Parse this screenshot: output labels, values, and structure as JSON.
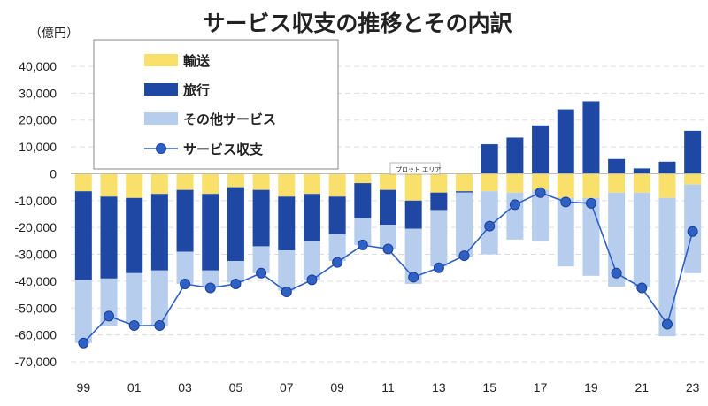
{
  "chart_data": {
    "type": "bar",
    "title": "サービス収支の推移とその内訳",
    "ylabel": "（億円）",
    "ylim": [
      -70000,
      40000
    ],
    "yticks": [
      "40,000",
      "30,000",
      "20,000",
      "10,000",
      "0",
      "-10,000",
      "-20,000",
      "-30,000",
      "-40,000",
      "-50,000",
      "-60,000",
      "-70,000"
    ],
    "ytick_values": [
      40000,
      30000,
      20000,
      10000,
      0,
      -10000,
      -20000,
      -30000,
      -40000,
      -50000,
      -60000,
      -70000
    ],
    "years": [
      "99",
      "00",
      "01",
      "02",
      "03",
      "04",
      "05",
      "06",
      "07",
      "08",
      "09",
      "10",
      "11",
      "12",
      "13",
      "14",
      "15",
      "16",
      "17",
      "18",
      "19",
      "20",
      "21",
      "22",
      "23"
    ],
    "xtick_labels": [
      "99",
      "01",
      "03",
      "05",
      "07",
      "09",
      "11",
      "13",
      "15",
      "17",
      "19",
      "21",
      "23"
    ],
    "grid": true,
    "legend_position": "top-left",
    "tooltip": "プロット エリア",
    "colors": {
      "transport": "#F9E06B",
      "travel": "#1F47A4",
      "other": "#B7CDEE",
      "line": "#2F60C4",
      "grid": "#DDDDDD"
    },
    "series": [
      {
        "name": "輸送",
        "stack": true,
        "values": [
          -6500,
          -8500,
          -9000,
          -7500,
          -6000,
          -7500,
          -5000,
          -6000,
          -8500,
          -7500,
          -8500,
          -3500,
          -6000,
          -10000,
          -7000,
          -6500,
          -6500,
          -7000,
          -6000,
          -9000,
          -9000,
          -7000,
          -7000,
          -9000,
          -4000
        ]
      },
      {
        "name": "旅行",
        "stack": true,
        "values": [
          -33000,
          -30500,
          -28000,
          -28500,
          -23000,
          -28500,
          -27500,
          -21000,
          -20000,
          -17500,
          -14000,
          -13000,
          -13000,
          -10500,
          -6500,
          -500,
          11000,
          13500,
          18000,
          24000,
          27000,
          5500,
          2000,
          4500,
          16000
        ]
      },
      {
        "name": "その他サービス",
        "stack": true,
        "values": [
          -23500,
          -17500,
          -19000,
          -20500,
          -12000,
          -6000,
          -8000,
          -10000,
          -15000,
          -14500,
          -10000,
          -10000,
          -9000,
          -20500,
          -21000,
          -24000,
          -23500,
          -17500,
          -19000,
          -25500,
          -29000,
          -35000,
          -35000,
          -51500,
          -33000
        ]
      },
      {
        "name": "サービス収支",
        "type": "line",
        "values": [
          -63000,
          -53000,
          -56500,
          -56500,
          -41000,
          -42500,
          -41000,
          -37000,
          -44000,
          -39500,
          -33000,
          -26500,
          -28000,
          -38500,
          -35000,
          -30500,
          -19500,
          -11500,
          -7000,
          -10500,
          -11000,
          -37000,
          -42500,
          -56000,
          -21500
        ]
      }
    ]
  }
}
